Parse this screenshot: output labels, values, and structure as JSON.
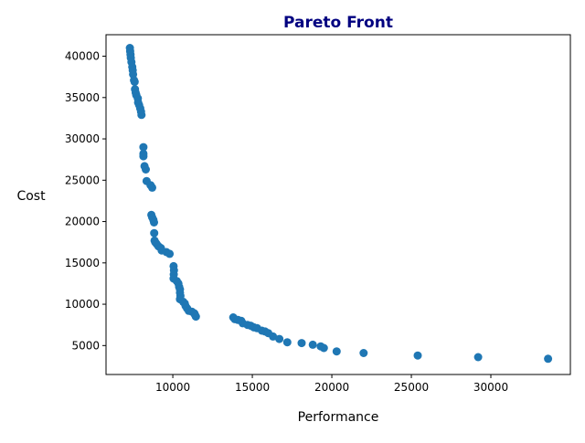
{
  "chart_data": {
    "type": "scatter",
    "title": "Pareto Front",
    "title_color": "#000080",
    "xlabel": "Performance",
    "ylabel": "Cost",
    "marker_color": "#1f77b4",
    "grid": false,
    "legend": "none",
    "xlim": [
      5800,
      35000
    ],
    "ylim": [
      1500,
      42600
    ],
    "xticks": [
      10000,
      15000,
      20000,
      25000,
      30000
    ],
    "xtick_labels": [
      "10000",
      "15000",
      "20000",
      "25000",
      "30000"
    ],
    "yticks": [
      5000,
      10000,
      15000,
      20000,
      25000,
      30000,
      35000,
      40000
    ],
    "ytick_labels": [
      "5000",
      "10000",
      "15000",
      "20000",
      "25000",
      "30000",
      "35000",
      "40000"
    ],
    "points": [
      {
        "x": 7300,
        "y": 41000
      },
      {
        "x": 7320,
        "y": 40600
      },
      {
        "x": 7340,
        "y": 40200
      },
      {
        "x": 7360,
        "y": 39800
      },
      {
        "x": 7400,
        "y": 39300
      },
      {
        "x": 7450,
        "y": 38700
      },
      {
        "x": 7480,
        "y": 38300
      },
      {
        "x": 7500,
        "y": 37800
      },
      {
        "x": 7560,
        "y": 37100
      },
      {
        "x": 7600,
        "y": 36900
      },
      {
        "x": 7620,
        "y": 36000
      },
      {
        "x": 7660,
        "y": 35600
      },
      {
        "x": 7700,
        "y": 35300
      },
      {
        "x": 7800,
        "y": 34900
      },
      {
        "x": 7820,
        "y": 34400
      },
      {
        "x": 7880,
        "y": 34100
      },
      {
        "x": 7950,
        "y": 33700
      },
      {
        "x": 8000,
        "y": 33300
      },
      {
        "x": 8030,
        "y": 32900
      },
      {
        "x": 8150,
        "y": 29000
      },
      {
        "x": 8150,
        "y": 28200
      },
      {
        "x": 8150,
        "y": 27900
      },
      {
        "x": 8220,
        "y": 26700
      },
      {
        "x": 8300,
        "y": 26300
      },
      {
        "x": 8350,
        "y": 24900
      },
      {
        "x": 8600,
        "y": 24400
      },
      {
        "x": 8700,
        "y": 24100
      },
      {
        "x": 8650,
        "y": 20800
      },
      {
        "x": 8700,
        "y": 20500
      },
      {
        "x": 8780,
        "y": 20200
      },
      {
        "x": 8820,
        "y": 19900
      },
      {
        "x": 8830,
        "y": 18600
      },
      {
        "x": 8850,
        "y": 17700
      },
      {
        "x": 8900,
        "y": 17500
      },
      {
        "x": 8980,
        "y": 17300
      },
      {
        "x": 9100,
        "y": 17000
      },
      {
        "x": 9250,
        "y": 16800
      },
      {
        "x": 9300,
        "y": 16500
      },
      {
        "x": 9600,
        "y": 16300
      },
      {
        "x": 9800,
        "y": 16100
      },
      {
        "x": 10050,
        "y": 14600
      },
      {
        "x": 10070,
        "y": 14100
      },
      {
        "x": 10060,
        "y": 13600
      },
      {
        "x": 10050,
        "y": 13100
      },
      {
        "x": 10250,
        "y": 12800
      },
      {
        "x": 10350,
        "y": 12500
      },
      {
        "x": 10400,
        "y": 12100
      },
      {
        "x": 10450,
        "y": 11800
      },
      {
        "x": 10450,
        "y": 11400
      },
      {
        "x": 10480,
        "y": 11000
      },
      {
        "x": 10450,
        "y": 10600
      },
      {
        "x": 10650,
        "y": 10300
      },
      {
        "x": 10750,
        "y": 10100
      },
      {
        "x": 10800,
        "y": 9800
      },
      {
        "x": 10900,
        "y": 9500
      },
      {
        "x": 11000,
        "y": 9200
      },
      {
        "x": 11200,
        "y": 9100
      },
      {
        "x": 11350,
        "y": 8900
      },
      {
        "x": 11400,
        "y": 8700
      },
      {
        "x": 11450,
        "y": 8500
      },
      {
        "x": 13800,
        "y": 8400
      },
      {
        "x": 13900,
        "y": 8200
      },
      {
        "x": 14100,
        "y": 8100
      },
      {
        "x": 14300,
        "y": 8000
      },
      {
        "x": 14400,
        "y": 7700
      },
      {
        "x": 14700,
        "y": 7500
      },
      {
        "x": 14900,
        "y": 7400
      },
      {
        "x": 15100,
        "y": 7200
      },
      {
        "x": 15300,
        "y": 7100
      },
      {
        "x": 15600,
        "y": 6800
      },
      {
        "x": 15800,
        "y": 6700
      },
      {
        "x": 16000,
        "y": 6500
      },
      {
        "x": 16300,
        "y": 6100
      },
      {
        "x": 16700,
        "y": 5800
      },
      {
        "x": 17200,
        "y": 5400
      },
      {
        "x": 18100,
        "y": 5300
      },
      {
        "x": 18800,
        "y": 5100
      },
      {
        "x": 19300,
        "y": 4900
      },
      {
        "x": 19500,
        "y": 4700
      },
      {
        "x": 20300,
        "y": 4300
      },
      {
        "x": 22000,
        "y": 4100
      },
      {
        "x": 25400,
        "y": 3800
      },
      {
        "x": 29200,
        "y": 3600
      },
      {
        "x": 33600,
        "y": 3400
      }
    ]
  }
}
